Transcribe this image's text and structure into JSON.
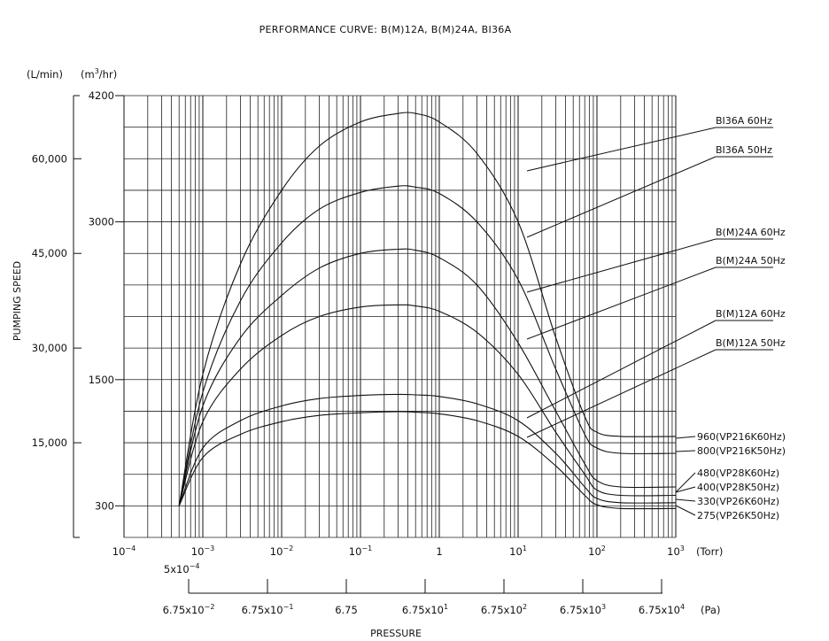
{
  "chart_data": {
    "type": "line",
    "title": "PERFORMANCE CURVE: B(M)12A, B(M)24A, BI36A",
    "xlabel": "PRESSURE",
    "ylabel": "PUMPING SPEED",
    "x_scale": "log",
    "x_unit_torr": "(Torr)",
    "x_unit_pa": "(Pa)",
    "xlim_torr": [
      0.0001,
      1000
    ],
    "torr_ticks": [
      {
        "base": "10",
        "exp": "−4"
      },
      {
        "base": "10",
        "exp": "−3"
      },
      {
        "base": "10",
        "exp": "−2"
      },
      {
        "base": "10",
        "exp": "−1"
      },
      {
        "base": "1",
        "exp": ""
      },
      {
        "base": "10",
        "exp": "1"
      },
      {
        "base": "10",
        "exp": "2"
      },
      {
        "base": "10",
        "exp": "3"
      }
    ],
    "start_pressure_label": {
      "base": "5x10",
      "exp": "−4"
    },
    "pa_ticks": [
      {
        "base": "6.75x10",
        "exp": "−2"
      },
      {
        "base": "6.75x10",
        "exp": "−1"
      },
      {
        "base": "6.75",
        "exp": ""
      },
      {
        "base": "6.75x10",
        "exp": "1"
      },
      {
        "base": "6.75x10",
        "exp": "2"
      },
      {
        "base": "6.75x10",
        "exp": "3"
      },
      {
        "base": "6.75x10",
        "exp": "4"
      }
    ],
    "y_units": {
      "lmin": "(L/min)",
      "m3hr": "(m",
      "m3hr_exp": "3",
      "m3hr_end": "/hr)"
    },
    "ylim_m3hr": [
      0,
      4200
    ],
    "y_ticks_m3hr": [
      "4200",
      "3000",
      "1500",
      "300"
    ],
    "y_ticks_lmin": [
      "60,000",
      "45,000",
      "30,000",
      "15,000"
    ],
    "series": [
      {
        "name": "BI36A 60Hz",
        "end_label": "960(VP216K60Hz)",
        "x": [
          0.0005,
          0.001,
          0.003,
          0.01,
          0.03,
          0.1,
          0.3,
          0.5,
          1,
          3,
          10,
          30,
          70,
          100,
          200,
          1000
        ],
        "y": [
          300,
          1550,
          2600,
          3300,
          3720,
          3950,
          4030,
          4030,
          3950,
          3650,
          3000,
          1900,
          1150,
          1000,
          960,
          960
        ]
      },
      {
        "name": "BI36A 50Hz",
        "end_label": "800(VP216K50Hz)",
        "x": [
          0.0005,
          0.001,
          0.003,
          0.01,
          0.03,
          0.1,
          0.3,
          0.5,
          1,
          3,
          10,
          30,
          70,
          100,
          200,
          1000
        ],
        "y": [
          300,
          1380,
          2250,
          2800,
          3120,
          3280,
          3340,
          3330,
          3270,
          3000,
          2450,
          1600,
          980,
          850,
          800,
          800
        ]
      },
      {
        "name": "B(M)24A 60Hz",
        "end_label": "480(VP28K60Hz)",
        "x": [
          0.0005,
          0.001,
          0.003,
          0.01,
          0.03,
          0.1,
          0.3,
          0.5,
          1,
          3,
          10,
          30,
          70,
          100,
          200,
          1000
        ],
        "y": [
          300,
          1250,
          1900,
          2300,
          2560,
          2700,
          2740,
          2730,
          2660,
          2400,
          1850,
          1200,
          700,
          540,
          480,
          480
        ]
      },
      {
        "name": "B(M)24A 50Hz",
        "end_label": "400(VP28K50Hz)",
        "x": [
          0.0005,
          0.001,
          0.003,
          0.01,
          0.03,
          0.1,
          0.3,
          0.5,
          1,
          3,
          10,
          30,
          70,
          100,
          200,
          1000
        ],
        "y": [
          300,
          1100,
          1600,
          1920,
          2100,
          2190,
          2210,
          2200,
          2150,
          1950,
          1550,
          1000,
          600,
          450,
          400,
          400
        ]
      },
      {
        "name": "B(M)12A 60Hz",
        "end_label": "330(VP26K60Hz)",
        "x": [
          0.0005,
          0.001,
          0.003,
          0.01,
          0.03,
          0.1,
          0.3,
          0.5,
          1,
          3,
          10,
          30,
          70,
          100,
          200,
          1000
        ],
        "y": [
          300,
          850,
          1110,
          1250,
          1320,
          1350,
          1360,
          1355,
          1340,
          1270,
          1110,
          800,
          480,
          370,
          330,
          330
        ]
      },
      {
        "name": "B(M)12A 50Hz",
        "end_label": "275(VP26K50Hz)",
        "x": [
          0.0005,
          0.001,
          0.003,
          0.01,
          0.03,
          0.1,
          0.3,
          0.5,
          1,
          3,
          10,
          30,
          70,
          100,
          200,
          1000
        ],
        "y": [
          300,
          760,
          980,
          1100,
          1160,
          1185,
          1195,
          1190,
          1175,
          1110,
          960,
          680,
          400,
          310,
          275,
          275
        ]
      }
    ]
  }
}
